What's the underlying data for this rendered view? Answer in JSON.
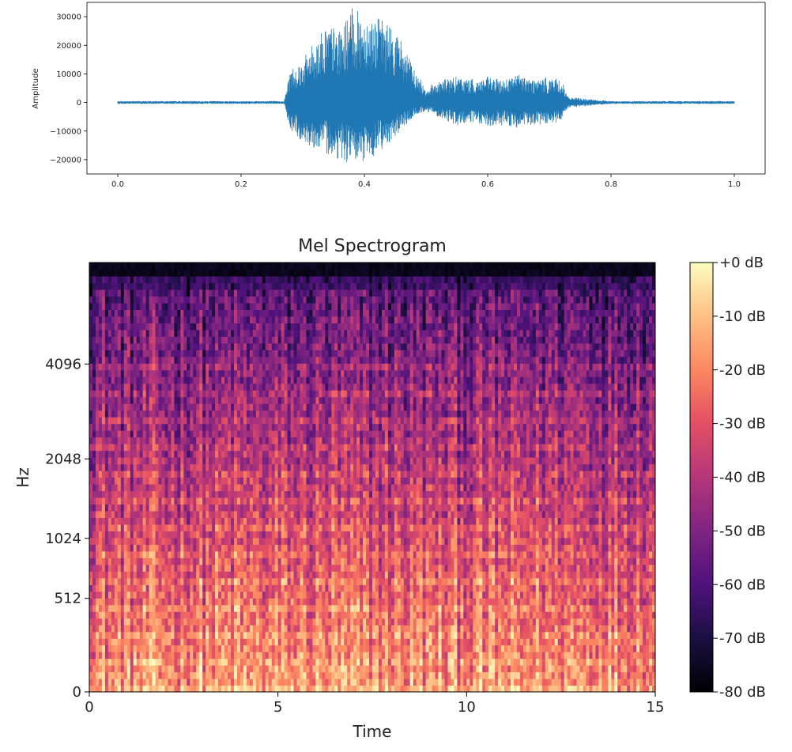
{
  "chart_data": [
    {
      "type": "line",
      "title": "",
      "xlabel": "",
      "ylabel": "Amplitude",
      "xlim": [
        -0.05,
        1.05
      ],
      "ylim": [
        -25000,
        35000
      ],
      "xticks": [
        0.0,
        0.2,
        0.4,
        0.6,
        0.8,
        1.0
      ],
      "xtick_labels": [
        "0.0",
        "0.2",
        "0.4",
        "0.6",
        "0.8",
        "1.0"
      ],
      "yticks": [
        -20000,
        -10000,
        0,
        10000,
        20000,
        30000
      ],
      "ytick_labels": [
        "−20000",
        "−10000",
        "0",
        "10000",
        "20000",
        "30000"
      ],
      "grid": false,
      "series": [
        {
          "color": "#1f77b4",
          "x": [
            0.0,
            0.1,
            0.2,
            0.27,
            0.28,
            0.3,
            0.32,
            0.34,
            0.36,
            0.38,
            0.4,
            0.42,
            0.44,
            0.46,
            0.48,
            0.5,
            0.52,
            0.55,
            0.58,
            0.6,
            0.62,
            0.65,
            0.68,
            0.7,
            0.72,
            0.73,
            0.75,
            0.78,
            0.8,
            0.85,
            0.9,
            0.95,
            1.0
          ],
          "max": [
            500,
            500,
            500,
            500,
            12000,
            15000,
            22000,
            28000,
            25000,
            33000,
            31000,
            30000,
            28000,
            22000,
            12000,
            5000,
            8000,
            9000,
            8000,
            9000,
            8000,
            10000,
            8000,
            9000,
            8000,
            2000,
            1500,
            800,
            500,
            500,
            500,
            500,
            500
          ],
          "min": [
            -500,
            -500,
            -500,
            -500,
            -10000,
            -14000,
            -16000,
            -18000,
            -20000,
            -22000,
            -21000,
            -18000,
            -14000,
            -10000,
            -5000,
            -3000,
            -5000,
            -8000,
            -7000,
            -9000,
            -8000,
            -9000,
            -8000,
            -8000,
            -7000,
            -2000,
            -1500,
            -800,
            -500,
            -500,
            -500,
            -500,
            -500
          ]
        }
      ]
    },
    {
      "type": "heatmap",
      "title": "Mel Spectrogram",
      "xlabel": "Time",
      "ylabel": "Hz",
      "xlim": [
        0,
        15
      ],
      "xticks": [
        0,
        5,
        10,
        15
      ],
      "xtick_labels": [
        "0",
        "5",
        "10",
        "15"
      ],
      "yscale": "mel",
      "ytick_labels": [
        "0",
        "512",
        "1024",
        "2048",
        "4096"
      ],
      "colormap": "magma",
      "colorbar": {
        "range": [
          -80,
          0
        ],
        "tick_labels": [
          "+0 dB",
          "-10 dB",
          "-20 dB",
          "-30 dB",
          "-40 dB",
          "-50 dB",
          "-60 dB",
          "-70 dB",
          "-80 dB"
        ]
      }
    }
  ]
}
